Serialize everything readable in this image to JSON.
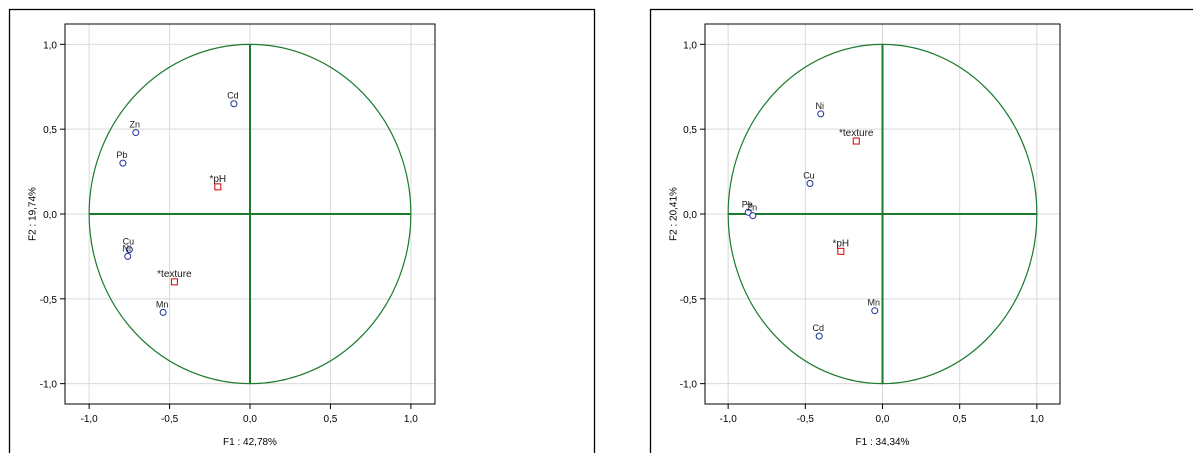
{
  "chart_data": [
    {
      "type": "scatter",
      "title": "",
      "xlabel": "F1 : 42,78%",
      "ylabel": "F2 : 19,74%",
      "xlim": [
        -1.15,
        1.15
      ],
      "ylim": [
        -1.12,
        1.12
      ],
      "xticks": [
        "-1,0",
        "-0,5",
        "0,0",
        "0,5",
        "1,0"
      ],
      "yticks": [
        "1,0",
        "0,5",
        "0,0",
        "-0,5",
        "-1,0"
      ],
      "grid": true,
      "circle_radius": 1.0,
      "colors": {
        "active": "#1f2f9a",
        "supplementary": "#d40000",
        "circle": "#1a7a2e",
        "grid": "#d9d9d9"
      },
      "series": [
        {
          "points": [
            {
              "label": "Cd",
              "x": -0.1,
              "y": 0.65
            },
            {
              "label": "Zn",
              "x": -0.71,
              "y": 0.48
            },
            {
              "label": "Pb",
              "x": -0.79,
              "y": 0.3
            },
            {
              "label": "Cu",
              "x": -0.75,
              "y": -0.21
            },
            {
              "label": "Ni",
              "x": -0.76,
              "y": -0.25
            },
            {
              "label": "Mn",
              "x": -0.54,
              "y": -0.58
            }
          ]
        },
        {
          "supplementary": true,
          "points": [
            {
              "label": "*pH",
              "x": -0.2,
              "y": 0.16
            },
            {
              "label": "*texture",
              "x": -0.47,
              "y": -0.4
            }
          ]
        }
      ]
    },
    {
      "type": "scatter",
      "title": "",
      "xlabel": "F1 : 34,34%",
      "ylabel": "F2 : 20,41%",
      "xlim": [
        -1.15,
        1.15
      ],
      "ylim": [
        -1.12,
        1.12
      ],
      "xticks": [
        "-1,0",
        "-0,5",
        "0,0",
        "0,5",
        "1,0"
      ],
      "yticks": [
        "1,0",
        "0,5",
        "0,0",
        "-0,5",
        "-1,0"
      ],
      "grid": true,
      "circle_radius": 1.0,
      "colors": {
        "active": "#1f2f9a",
        "supplementary": "#d40000",
        "circle": "#1a7a2e",
        "grid": "#d9d9d9"
      },
      "series": [
        {
          "points": [
            {
              "label": "Ni",
              "x": -0.4,
              "y": 0.59
            },
            {
              "label": "Cu",
              "x": -0.47,
              "y": 0.18
            },
            {
              "label": "Pb",
              "x": -0.87,
              "y": 0.01
            },
            {
              "label": "Zn",
              "x": -0.84,
              "y": -0.01
            },
            {
              "label": "Mn",
              "x": -0.05,
              "y": -0.57
            },
            {
              "label": "Cd",
              "x": -0.41,
              "y": -0.72
            }
          ]
        },
        {
          "supplementary": true,
          "points": [
            {
              "label": "*texture",
              "x": -0.17,
              "y": 0.43
            },
            {
              "label": "*pH",
              "x": -0.27,
              "y": -0.22
            }
          ]
        }
      ]
    }
  ]
}
